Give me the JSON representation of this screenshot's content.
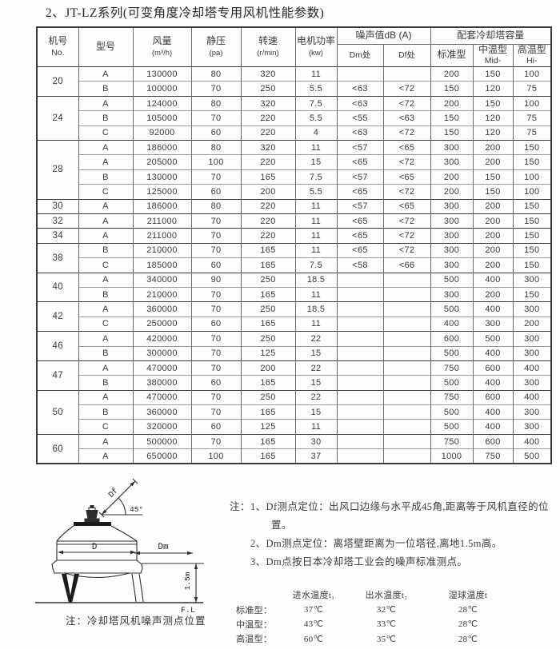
{
  "title": "2、JT-LZ系列(可变角度冷却塔专用风机性能参数)",
  "table": {
    "headers": {
      "no": "机号",
      "no_sub": "No.",
      "model": "型号",
      "airflow": "风量",
      "airflow_unit": "(m³/h)",
      "static_pressure": "静压",
      "static_pressure_unit": "(pa)",
      "speed": "转速",
      "speed_unit": "(r/min)",
      "motor_power": "电机功率",
      "motor_power_unit": "(kw)",
      "noise_group": "噪声值dB (A)",
      "noise_dm": "Dm处",
      "noise_df": "Df处",
      "capacity_group": "配套冷却塔容量",
      "cap_std": "标准型",
      "cap_mid": "中温型",
      "cap_mid_sub": "Mid-",
      "cap_hi": "高温型",
      "cap_hi_sub": "Hi-"
    },
    "groups": [
      {
        "no": "20",
        "rows": [
          [
            "A",
            "130000",
            "80",
            "320",
            "11",
            "",
            "",
            "200",
            "150",
            "100"
          ],
          [
            "B",
            "100000",
            "70",
            "250",
            "5.5",
            "<63",
            "<72",
            "150",
            "120",
            "75"
          ]
        ]
      },
      {
        "no": "24",
        "rows": [
          [
            "A",
            "124000",
            "80",
            "320",
            "7.5",
            "<63",
            "<72",
            "200",
            "150",
            "100"
          ],
          [
            "B",
            "105000",
            "70",
            "220",
            "5.5",
            "<55",
            "<63",
            "150",
            "120",
            "75"
          ],
          [
            "C",
            "92000",
            "60",
            "220",
            "4",
            "<63",
            "<72",
            "150",
            "120",
            "75"
          ]
        ]
      },
      {
        "no": "28",
        "rows": [
          [
            "A",
            "186000",
            "80",
            "320",
            "11",
            "<57",
            "<65",
            "300",
            "200",
            "150"
          ],
          [
            "A",
            "205000",
            "100",
            "220",
            "15",
            "<65",
            "<72",
            "300",
            "200",
            "150"
          ],
          [
            "B",
            "130000",
            "70",
            "165",
            "7.5",
            "<57",
            "<65",
            "200",
            "150",
            "100"
          ],
          [
            "C",
            "125000",
            "60",
            "200",
            "5.5",
            "<65",
            "<72",
            "200",
            "150",
            "100"
          ]
        ]
      },
      {
        "no": "30",
        "rows": [
          [
            "A",
            "186000",
            "80",
            "220",
            "11",
            "<57",
            "<65",
            "300",
            "200",
            "150"
          ]
        ]
      },
      {
        "no": "32",
        "rows": [
          [
            "A",
            "211000",
            "70",
            "220",
            "11",
            "<65",
            "<72",
            "300",
            "200",
            "150"
          ]
        ]
      },
      {
        "no": "34",
        "rows": [
          [
            "A",
            "211000",
            "70",
            "220",
            "11",
            "<65",
            "<72",
            "300",
            "200",
            "150"
          ]
        ]
      },
      {
        "no": "38",
        "rows": [
          [
            "B",
            "210000",
            "70",
            "165",
            "11",
            "<65",
            "<72",
            "300",
            "200",
            "150"
          ],
          [
            "C",
            "185000",
            "60",
            "165",
            "7.5",
            "<58",
            "<66",
            "300",
            "200",
            "150"
          ]
        ]
      },
      {
        "no": "40",
        "rows": [
          [
            "A",
            "340000",
            "90",
            "250",
            "18.5",
            "",
            "",
            "500",
            "400",
            "300"
          ],
          [
            "B",
            "210000",
            "70",
            "165",
            "11",
            "",
            "",
            "300",
            "200",
            "150"
          ]
        ]
      },
      {
        "no": "42",
        "rows": [
          [
            "A",
            "360000",
            "70",
            "250",
            "18.5",
            "",
            "",
            "500",
            "400",
            "300"
          ],
          [
            "C",
            "250000",
            "60",
            "165",
            "11",
            "",
            "",
            "400",
            "300",
            "200"
          ]
        ]
      },
      {
        "no": "46",
        "rows": [
          [
            "A",
            "420000",
            "70",
            "250",
            "22",
            "",
            "",
            "600",
            "500",
            "300"
          ],
          [
            "B",
            "300000",
            "70",
            "125",
            "15",
            "",
            "",
            "500",
            "400",
            "300"
          ]
        ]
      },
      {
        "no": "47",
        "rows": [
          [
            "A",
            "470000",
            "70",
            "200",
            "22",
            "",
            "",
            "750",
            "600",
            "400"
          ],
          [
            "B",
            "380000",
            "60",
            "165",
            "15",
            "",
            "",
            "500",
            "400",
            "300"
          ]
        ]
      },
      {
        "no": "50",
        "rows": [
          [
            "A",
            "470000",
            "70",
            "250",
            "22",
            "",
            "",
            "750",
            "600",
            "400"
          ],
          [
            "B",
            "360000",
            "70",
            "165",
            "15",
            "",
            "",
            "500",
            "400",
            "300"
          ],
          [
            "C",
            "320000",
            "60",
            "125",
            "11",
            "",
            "",
            "500",
            "400",
            "300"
          ]
        ]
      },
      {
        "no": "60",
        "rows": [
          [
            "A",
            "500000",
            "70",
            "165",
            "30",
            "",
            "",
            "750",
            "600",
            "400"
          ],
          [
            "A",
            "650000",
            "100",
            "165",
            "37",
            "",
            "",
            "1000",
            "750",
            "500"
          ]
        ]
      }
    ]
  },
  "diagram": {
    "df_label": "Df",
    "angle_label": "45°",
    "d_label": "D",
    "dm_label": "Dm",
    "height_label": "1.5m",
    "floor_label": "F.L",
    "caption": "注：冷却塔风机噪声测点位置"
  },
  "notes": {
    "prefix": "注：",
    "items": [
      "1、Df测点定位：出风口边缘与水平成45角,距离等于风机直径的位置。",
      "2、Dm测点定位：离塔壁距离为一位塔径,离地1.5m高。",
      "3、Dm点按日本冷却塔工业会的噪声标准测点。"
    ]
  },
  "temperature": {
    "col_headers": [
      "进水温度t₁",
      "出水温度t₂",
      "湿球温度t"
    ],
    "rows": [
      {
        "label": "标准型：",
        "values": [
          "37℃",
          "32℃",
          "28℃"
        ]
      },
      {
        "label": "中温型：",
        "values": [
          "43℃",
          "33℃",
          "28℃"
        ]
      },
      {
        "label": "高温型：",
        "values": [
          "60℃",
          "35℃",
          "28℃"
        ]
      }
    ]
  }
}
